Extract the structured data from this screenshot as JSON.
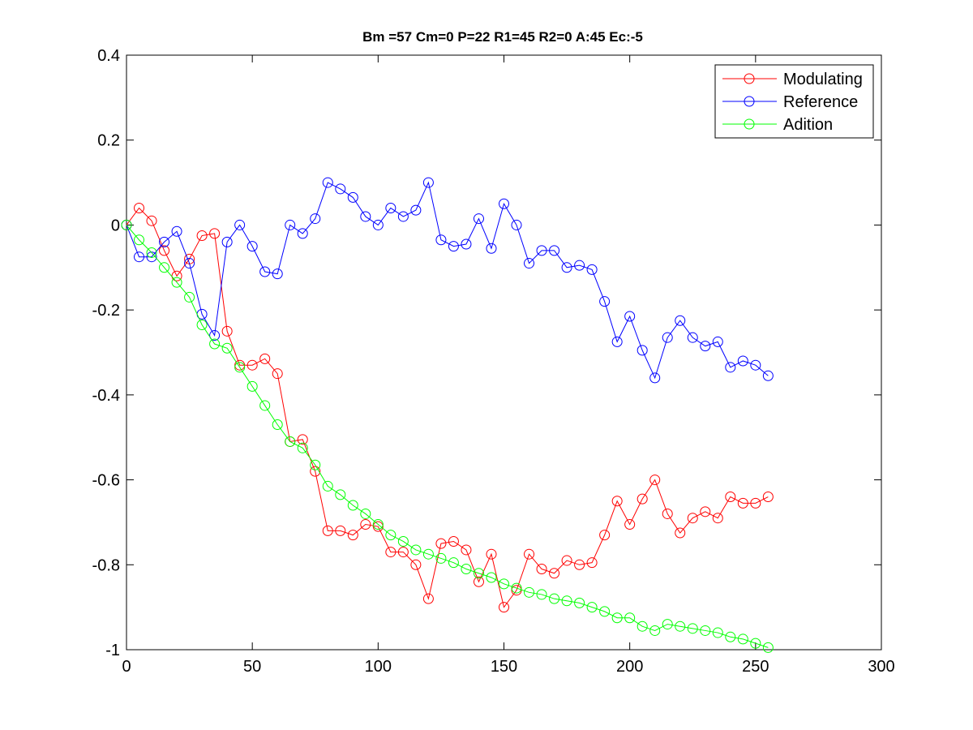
{
  "chart_data": {
    "type": "line",
    "title": "Bm =57  Cm=0  P=22  R1=45  R2=0  A:45  Ec:-5",
    "xlabel": "",
    "ylabel": "",
    "xlim": [
      0,
      300
    ],
    "ylim": [
      -1,
      0.4
    ],
    "xticks": [
      0,
      50,
      100,
      150,
      200,
      250,
      300
    ],
    "yticks": [
      -1,
      -0.8,
      -0.6,
      -0.4,
      -0.2,
      0,
      0.2,
      0.4
    ],
    "xtick_labels": [
      "0",
      "50",
      "100",
      "150",
      "200",
      "250",
      "300"
    ],
    "ytick_labels": [
      "-1",
      "-0.8",
      "-0.6",
      "-0.4",
      "-0.2",
      "0",
      "0.2",
      "0.4"
    ],
    "grid": false,
    "legend_position": "top-right",
    "marker": "circle",
    "x": [
      0,
      5,
      10,
      15,
      20,
      25,
      30,
      35,
      40,
      45,
      50,
      55,
      60,
      65,
      70,
      75,
      80,
      85,
      90,
      95,
      100,
      105,
      110,
      115,
      120,
      125,
      130,
      135,
      140,
      145,
      150,
      155,
      160,
      165,
      170,
      175,
      180,
      185,
      190,
      195,
      200,
      205,
      210,
      215,
      220,
      225,
      230,
      235,
      240,
      245,
      250,
      255
    ],
    "series": [
      {
        "name": "Modulating",
        "color": "#ff0000",
        "values": [
          0,
          0.04,
          0.01,
          -0.06,
          -0.12,
          -0.08,
          -0.025,
          -0.02,
          -0.25,
          -0.33,
          -0.33,
          -0.315,
          -0.35,
          -0.51,
          -0.505,
          -0.58,
          -0.72,
          -0.72,
          -0.73,
          -0.705,
          -0.71,
          -0.77,
          -0.77,
          -0.8,
          -0.88,
          -0.75,
          -0.745,
          -0.765,
          -0.84,
          -0.775,
          -0.9,
          -0.86,
          -0.775,
          -0.81,
          -0.82,
          -0.79,
          -0.8,
          -0.795,
          -0.73,
          -0.65,
          -0.705,
          -0.645,
          -0.6,
          -0.68,
          -0.725,
          -0.69,
          -0.675,
          -0.69,
          -0.64,
          -0.655,
          -0.655,
          -0.64
        ]
      },
      {
        "name": "Reference",
        "color": "#0000ff",
        "values": [
          0,
          -0.075,
          -0.075,
          -0.04,
          -0.015,
          -0.09,
          -0.21,
          -0.26,
          -0.04,
          0,
          -0.05,
          -0.11,
          -0.115,
          0,
          -0.02,
          0.015,
          0.1,
          0.085,
          0.065,
          0.02,
          0,
          0.04,
          0.02,
          0.035,
          0.1,
          -0.035,
          -0.05,
          -0.045,
          0.015,
          -0.055,
          0.05,
          0,
          -0.09,
          -0.06,
          -0.06,
          -0.1,
          -0.095,
          -0.105,
          -0.18,
          -0.275,
          -0.215,
          -0.295,
          -0.36,
          -0.265,
          -0.225,
          -0.265,
          -0.285,
          -0.275,
          -0.335,
          -0.32,
          -0.33,
          -0.355
        ]
      },
      {
        "name": "Adition",
        "color": "#00ff00",
        "values": [
          0,
          -0.035,
          -0.065,
          -0.1,
          -0.135,
          -0.17,
          -0.235,
          -0.28,
          -0.29,
          -0.335,
          -0.38,
          -0.425,
          -0.47,
          -0.51,
          -0.525,
          -0.565,
          -0.615,
          -0.635,
          -0.66,
          -0.68,
          -0.705,
          -0.73,
          -0.745,
          -0.765,
          -0.775,
          -0.785,
          -0.795,
          -0.81,
          -0.82,
          -0.83,
          -0.845,
          -0.855,
          -0.865,
          -0.87,
          -0.88,
          -0.885,
          -0.89,
          -0.9,
          -0.91,
          -0.925,
          -0.925,
          -0.945,
          -0.955,
          -0.94,
          -0.945,
          -0.95,
          -0.955,
          -0.96,
          -0.97,
          -0.975,
          -0.985,
          -0.995
        ]
      }
    ]
  }
}
